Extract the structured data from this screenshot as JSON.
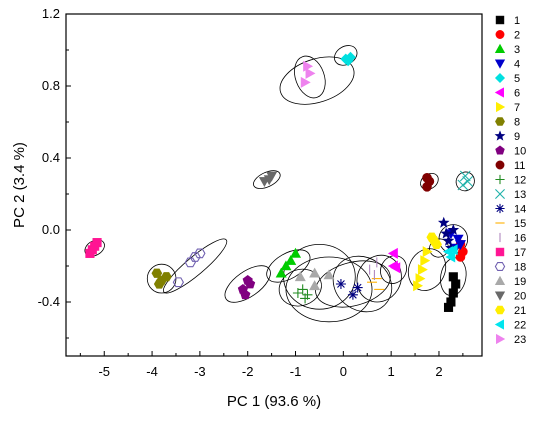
{
  "chart_data": {
    "type": "scatter",
    "title": "",
    "xlabel": "PC 1 (93.6 %)",
    "ylabel": "PC 2 (3.4 %)",
    "xlim": [
      -5.8,
      2.9
    ],
    "ylim": [
      -0.7,
      1.2
    ],
    "xticks": [
      -5,
      -4,
      -3,
      -2,
      -1,
      0,
      1,
      2
    ],
    "xtick_labels": [
      "-5",
      "-4",
      "-3",
      "-2",
      "-1",
      "0",
      "1",
      "2"
    ],
    "yticks": [
      -0.4,
      0.0,
      0.4,
      0.8,
      1.2
    ],
    "ytick_labels": [
      "-0.4",
      "0.0",
      "0.4",
      "0.8",
      "1.2"
    ],
    "grid": false,
    "legend_position": "right",
    "series": [
      {
        "name": "1",
        "marker": "square",
        "color": "#000000",
        "filled": true,
        "points": [
          [
            2.3,
            -0.26
          ],
          [
            2.35,
            -0.3
          ],
          [
            2.3,
            -0.35
          ],
          [
            2.25,
            -0.4
          ],
          [
            2.2,
            -0.43
          ]
        ]
      },
      {
        "name": "2",
        "marker": "circle",
        "color": "#ff0000",
        "filled": true,
        "points": [
          [
            2.45,
            -0.08
          ],
          [
            2.5,
            -0.12
          ],
          [
            2.45,
            -0.15
          ]
        ]
      },
      {
        "name": "3",
        "marker": "triangle-up",
        "color": "#00cc00",
        "filled": true,
        "points": [
          [
            -1.3,
            -0.24
          ],
          [
            -1.2,
            -0.2
          ],
          [
            -1.1,
            -0.17
          ],
          [
            -1.0,
            -0.13
          ]
        ]
      },
      {
        "name": "4",
        "marker": "triangle-down",
        "color": "#0000cc",
        "filled": true,
        "points": [
          [
            2.25,
            -0.02
          ],
          [
            2.4,
            -0.05
          ],
          [
            2.45,
            -0.08
          ],
          [
            2.35,
            -0.1
          ]
        ]
      },
      {
        "name": "5",
        "marker": "diamond",
        "color": "#00e0e0",
        "filled": true,
        "points": [
          [
            0.05,
            0.95
          ],
          [
            0.15,
            0.96
          ],
          [
            0.1,
            0.94
          ]
        ]
      },
      {
        "name": "6",
        "marker": "triangle-left",
        "color": "#ff00ff",
        "filled": true,
        "points": [
          [
            1.05,
            -0.13
          ],
          [
            1.05,
            -0.2
          ],
          [
            1.1,
            -0.21
          ]
        ]
      },
      {
        "name": "7",
        "marker": "triangle-right",
        "color": "#ffee00",
        "filled": true,
        "points": [
          [
            1.55,
            -0.31
          ],
          [
            1.6,
            -0.27
          ],
          [
            1.65,
            -0.22
          ],
          [
            1.7,
            -0.17
          ],
          [
            1.75,
            -0.12
          ]
        ]
      },
      {
        "name": "8",
        "marker": "hexagon",
        "color": "#808000",
        "filled": true,
        "points": [
          [
            -3.9,
            -0.24
          ],
          [
            -3.8,
            -0.28
          ],
          [
            -3.7,
            -0.26
          ],
          [
            -3.85,
            -0.3
          ]
        ]
      },
      {
        "name": "9",
        "marker": "star",
        "color": "#000080",
        "filled": true,
        "points": [
          [
            2.1,
            0.04
          ],
          [
            2.15,
            -0.02
          ],
          [
            2.2,
            -0.06
          ],
          [
            2.25,
            -0.1
          ],
          [
            2.3,
            0.0
          ]
        ]
      },
      {
        "name": "10",
        "marker": "pentagon",
        "color": "#800080",
        "filled": true,
        "points": [
          [
            -2.1,
            -0.33
          ],
          [
            -2.0,
            -0.28
          ],
          [
            -1.95,
            -0.3
          ],
          [
            -2.05,
            -0.36
          ]
        ]
      },
      {
        "name": "11",
        "marker": "circle",
        "color": "#800000",
        "filled": true,
        "points": [
          [
            1.75,
            0.24
          ],
          [
            1.8,
            0.27
          ],
          [
            1.75,
            0.29
          ]
        ]
      },
      {
        "name": "12",
        "marker": "plus",
        "color": "#228b22",
        "filled": false,
        "points": [
          [
            -0.95,
            -0.35
          ],
          [
            -0.85,
            -0.33
          ],
          [
            -0.75,
            -0.36
          ],
          [
            -0.8,
            -0.38
          ]
        ]
      },
      {
        "name": "13",
        "marker": "x",
        "color": "#20b2aa",
        "filled": false,
        "points": [
          [
            2.55,
            0.3
          ],
          [
            2.6,
            0.27
          ],
          [
            2.5,
            0.25
          ]
        ]
      },
      {
        "name": "14",
        "marker": "asterisk",
        "color": "#000080",
        "filled": false,
        "points": [
          [
            -0.05,
            -0.3
          ],
          [
            0.2,
            -0.36
          ],
          [
            0.3,
            -0.32
          ]
        ]
      },
      {
        "name": "15",
        "marker": "hline",
        "color": "#ffb000",
        "filled": false,
        "points": [
          [
            0.6,
            -0.29
          ],
          [
            0.7,
            -0.27
          ],
          [
            0.75,
            -0.33
          ]
        ]
      },
      {
        "name": "16",
        "marker": "vline",
        "color": "#b088c0",
        "filled": false,
        "points": [
          [
            0.55,
            -0.22
          ],
          [
            0.65,
            -0.25
          ],
          [
            0.7,
            -0.18
          ]
        ]
      },
      {
        "name": "17",
        "marker": "square",
        "color": "#ff1493",
        "filled": true,
        "points": [
          [
            -5.3,
            -0.13
          ],
          [
            -5.25,
            -0.11
          ],
          [
            -5.2,
            -0.09
          ],
          [
            -5.15,
            -0.07
          ]
        ]
      },
      {
        "name": "18",
        "marker": "hexagon",
        "color": "#7060b0",
        "filled": false,
        "points": [
          [
            -3.2,
            -0.18
          ],
          [
            -3.1,
            -0.15
          ],
          [
            -3.0,
            -0.13
          ],
          [
            -3.45,
            -0.29
          ]
        ]
      },
      {
        "name": "19",
        "marker": "triangle-up",
        "color": "#a9a9a9",
        "filled": true,
        "points": [
          [
            -0.9,
            -0.26
          ],
          [
            -0.6,
            -0.24
          ],
          [
            -0.3,
            -0.25
          ],
          [
            -0.6,
            -0.31
          ]
        ]
      },
      {
        "name": "20",
        "marker": "triangle-down",
        "color": "#696969",
        "filled": true,
        "points": [
          [
            -1.65,
            0.27
          ],
          [
            -1.55,
            0.28
          ],
          [
            -1.5,
            0.3
          ]
        ]
      },
      {
        "name": "21",
        "marker": "hexagon",
        "color": "#ffee00",
        "filled": true,
        "points": [
          [
            1.9,
            -0.06
          ],
          [
            1.95,
            -0.08
          ],
          [
            1.85,
            -0.04
          ]
        ]
      },
      {
        "name": "22",
        "marker": "triangle-left",
        "color": "#00e5ee",
        "filled": true,
        "points": [
          [
            2.2,
            -0.12
          ],
          [
            2.25,
            -0.15
          ],
          [
            2.3,
            -0.11
          ]
        ]
      },
      {
        "name": "23",
        "marker": "triangle-right",
        "color": "#ee82ee",
        "filled": true,
        "points": [
          [
            -0.8,
            0.82
          ],
          [
            -0.7,
            0.87
          ],
          [
            -0.75,
            0.91
          ]
        ]
      }
    ],
    "ellipses": [
      {
        "cx": -0.55,
        "cy": 0.83,
        "rx": 0.8,
        "ry": 0.12,
        "angle": 18
      },
      {
        "cx": -0.7,
        "cy": 0.85,
        "rx": 0.3,
        "ry": 0.12,
        "angle": 20
      },
      {
        "cx": 0.05,
        "cy": 0.97,
        "rx": 0.25,
        "ry": 0.05,
        "angle": 30
      },
      {
        "cx": -1.6,
        "cy": 0.28,
        "rx": 0.3,
        "ry": 0.04,
        "angle": 25
      },
      {
        "cx": 1.8,
        "cy": 0.27,
        "rx": 0.2,
        "ry": 0.04,
        "angle": 35
      },
      {
        "cx": 2.55,
        "cy": 0.27,
        "rx": 0.2,
        "ry": 0.05,
        "angle": 60
      },
      {
        "cx": -5.2,
        "cy": -0.1,
        "rx": 0.22,
        "ry": 0.04,
        "angle": 30
      },
      {
        "cx": -3.8,
        "cy": -0.27,
        "rx": 0.3,
        "ry": 0.08,
        "angle": 0
      },
      {
        "cx": -3.1,
        "cy": -0.2,
        "rx": 0.85,
        "ry": 0.05,
        "angle": 40
      },
      {
        "cx": -2.0,
        "cy": -0.3,
        "rx": 0.55,
        "ry": 0.07,
        "angle": 35
      },
      {
        "cx": -1.15,
        "cy": -0.2,
        "rx": 0.5,
        "ry": 0.07,
        "angle": 30
      },
      {
        "cx": -0.9,
        "cy": -0.32,
        "rx": 0.45,
        "ry": 0.1,
        "angle": 20
      },
      {
        "cx": -0.5,
        "cy": -0.26,
        "rx": 0.75,
        "ry": 0.18,
        "angle": 0
      },
      {
        "cx": -0.3,
        "cy": -0.33,
        "rx": 0.9,
        "ry": 0.18,
        "angle": 0
      },
      {
        "cx": 0.2,
        "cy": -0.3,
        "rx": 0.8,
        "ry": 0.12,
        "angle": 15
      },
      {
        "cx": 0.4,
        "cy": -0.3,
        "rx": 0.55,
        "ry": 0.17,
        "angle": 55
      },
      {
        "cx": 0.75,
        "cy": -0.27,
        "rx": 0.5,
        "ry": 0.12,
        "angle": 60
      },
      {
        "cx": 1.05,
        "cy": -0.22,
        "rx": 0.3,
        "ry": 0.07,
        "angle": 60
      },
      {
        "cx": 1.75,
        "cy": -0.22,
        "rx": 0.45,
        "ry": 0.1,
        "angle": 65
      },
      {
        "cx": 2.3,
        "cy": -0.26,
        "rx": 0.4,
        "ry": 0.07,
        "angle": 80
      },
      {
        "cx": 2.3,
        "cy": -0.05,
        "rx": 0.3,
        "ry": 0.08,
        "angle": 0
      },
      {
        "cx": 2.0,
        "cy": -0.1,
        "rx": 0.2,
        "ry": 0.05,
        "angle": 30
      }
    ]
  }
}
